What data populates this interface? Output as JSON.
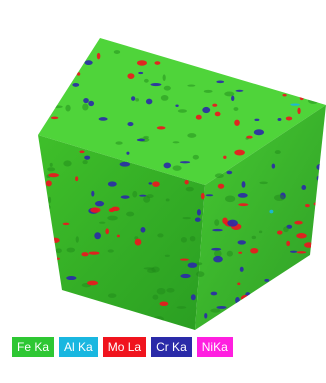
{
  "legend": [
    {
      "label": "Fe Ka",
      "color": "#2ec733"
    },
    {
      "label": "Al Ka",
      "color": "#19b7e0"
    },
    {
      "label": "Mo La",
      "color": "#f0141e"
    },
    {
      "label": "Cr Ka",
      "color": "#2a2aa8"
    },
    {
      "label": "NiKa",
      "color": "#ff1fe0"
    }
  ]
}
